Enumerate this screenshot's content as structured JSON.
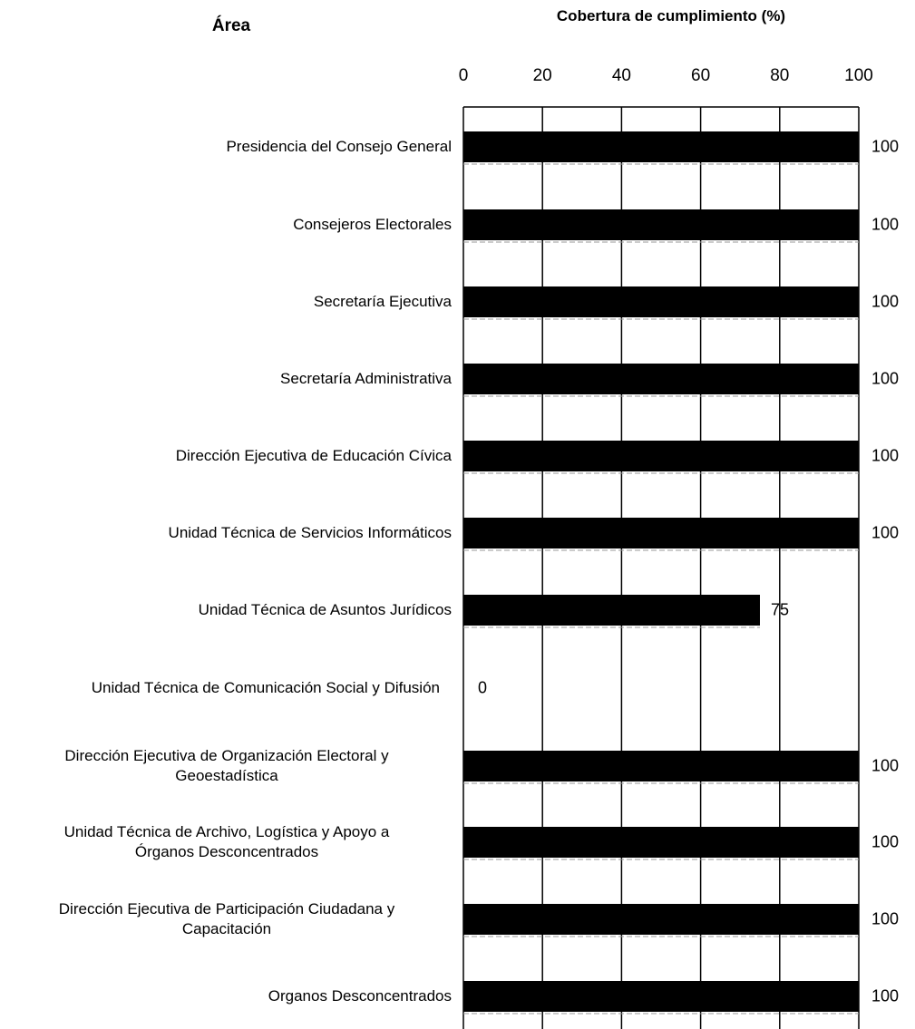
{
  "chart_data": {
    "type": "bar",
    "orientation": "horizontal",
    "title": "",
    "ylabel": "Área",
    "xlabel": "Cobertura de cumplimiento (%)",
    "xlim": [
      0,
      100
    ],
    "xticks": [
      0,
      20,
      40,
      60,
      80,
      100
    ],
    "grid": true,
    "bar_color": "#000000",
    "categories": [
      "Presidencia del Consejo General",
      "Consejeros Electorales",
      "Secretaría Ejecutiva",
      "Secretaría Administrativa",
      "Dirección Ejecutiva de Educación Cívica",
      "Unidad Técnica de Servicios Informáticos",
      "Unidad Técnica de Asuntos Jurídicos",
      "Unidad Técnica de Comunicación Social y Difusión",
      "Dirección Ejecutiva de Organización Electoral y Geoestadística",
      "Unidad Técnica de Archivo, Logística y Apoyo a Órganos Desconcentrados",
      "Dirección Ejecutiva de Participación Ciudadana y Capacitación",
      "Organos Desconcentrados"
    ],
    "category_lines": [
      [
        "Presidencia del Consejo General"
      ],
      [
        "Consejeros Electorales"
      ],
      [
        "Secretaría Ejecutiva"
      ],
      [
        "Secretaría Administrativa"
      ],
      [
        "Dirección Ejecutiva de Educación Cívica"
      ],
      [
        "Unidad Técnica de Servicios Informáticos"
      ],
      [
        "Unidad Técnica de Asuntos Jurídicos"
      ],
      [
        "Unidad Técnica de Comunicación Social y Difusión"
      ],
      [
        "Dirección Ejecutiva de Organización Electoral y",
        "Geoestadística"
      ],
      [
        "Unidad Técnica de Archivo, Logística y Apoyo a",
        "Órganos Desconcentrados"
      ],
      [
        "Dirección Ejecutiva de Participación Ciudadana y",
        "Capacitación"
      ],
      [
        "Organos Desconcentrados"
      ]
    ],
    "values": [
      100,
      100,
      100,
      100,
      100,
      100,
      75,
      0,
      100,
      100,
      100,
      100
    ],
    "data_labels": [
      "100",
      "100",
      "100",
      "100",
      "100",
      "100",
      "75",
      "0",
      "100",
      "100",
      "100",
      "100"
    ]
  }
}
